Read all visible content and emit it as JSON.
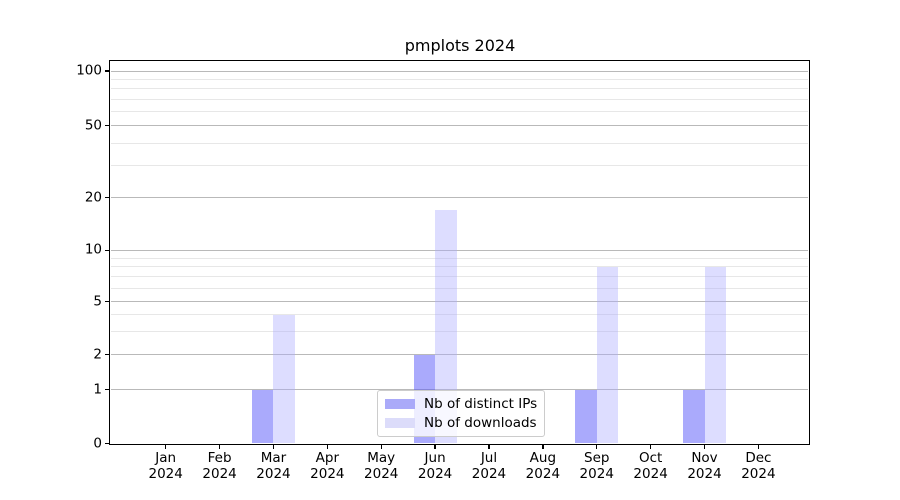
{
  "chart_data": {
    "type": "bar",
    "title": "pmplots 2024",
    "months": [
      "Jan",
      "Feb",
      "Mar",
      "Apr",
      "May",
      "Jun",
      "Jul",
      "Aug",
      "Sep",
      "Oct",
      "Nov",
      "Dec"
    ],
    "year_label": "2024",
    "categories": [
      "Jan 2024",
      "Feb 2024",
      "Mar 2024",
      "Apr 2024",
      "May 2024",
      "Jun 2024",
      "Jul 2024",
      "Aug 2024",
      "Sep 2024",
      "Oct 2024",
      "Nov 2024",
      "Dec 2024"
    ],
    "series": [
      {
        "name": "Nb of distinct IPs",
        "values": [
          0,
          0,
          1,
          0,
          0,
          2,
          0,
          0,
          1,
          0,
          1,
          0
        ],
        "fill": "rgba(85,85,250,0.5)",
        "swatch_color": "#aaaaf9"
      },
      {
        "name": "Nb of downloads",
        "values": [
          0,
          0,
          4,
          0,
          0,
          17,
          0,
          0,
          8,
          0,
          8,
          0
        ],
        "fill": "rgba(170,170,255,0.4)",
        "swatch_color": "#dcdcfa"
      }
    ],
    "y_axis": {
      "scale": "log-like",
      "major_ticks": [
        0,
        1,
        2,
        5,
        10,
        20,
        50,
        100
      ],
      "minor_gridlines": [
        3,
        4,
        6,
        7,
        8,
        9,
        30,
        40,
        60,
        70,
        80,
        90
      ]
    },
    "grid": "on",
    "legend_position": "lower center",
    "colors": {
      "major_grid": "#b9b9b9",
      "minor_grid": "#e7e7e7",
      "axis": "#000000",
      "background": "#ffffff"
    }
  }
}
